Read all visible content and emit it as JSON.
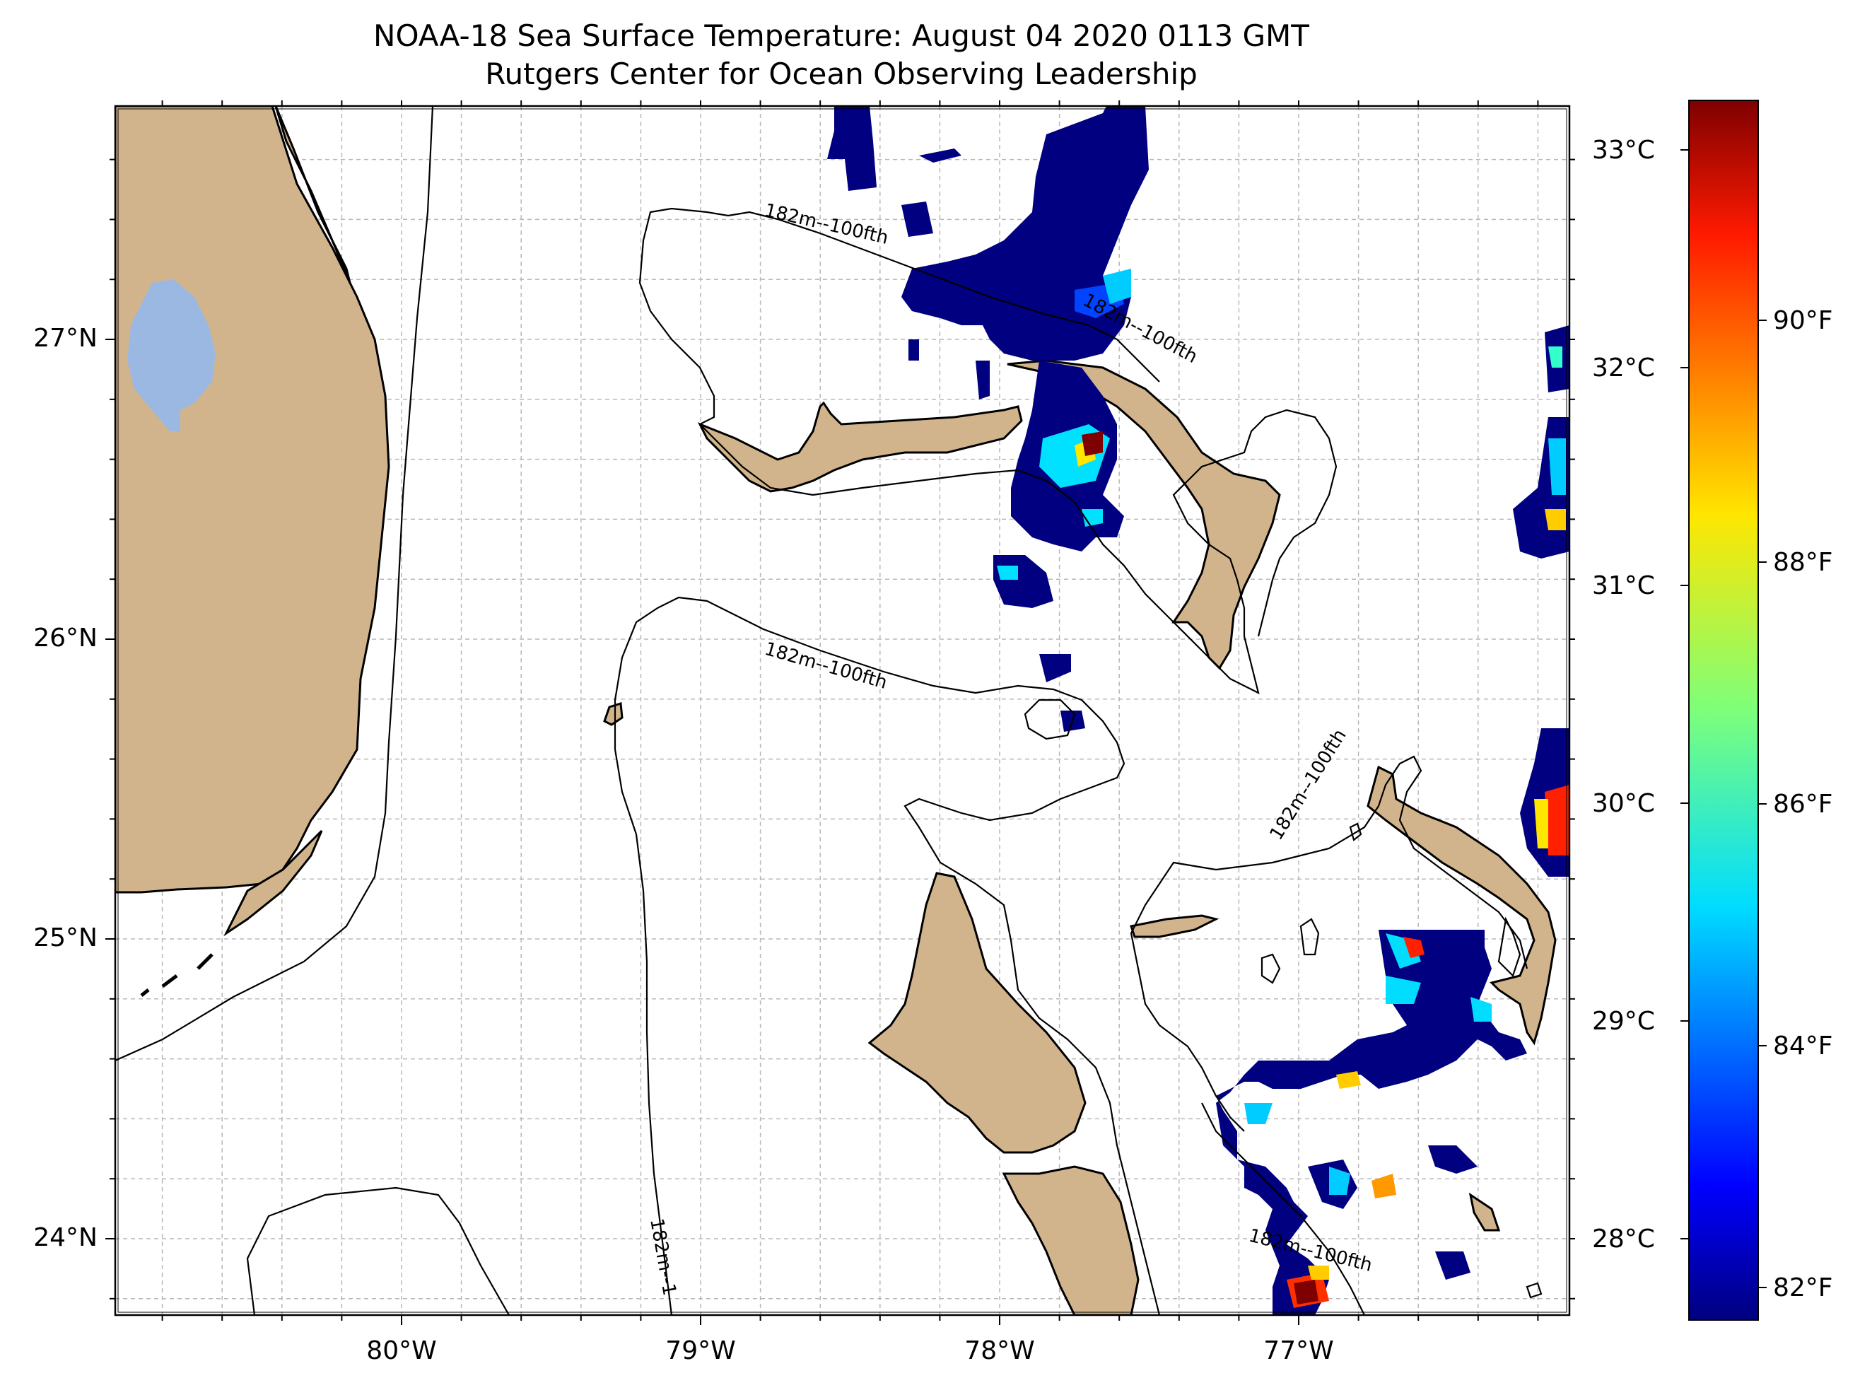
{
  "title": {
    "line1": "NOAA-18 Sea Surface Temperature: August 04 2020 0113 GMT",
    "line2": "Rutgers Center for Ocean Observing Leadership"
  },
  "axes": {
    "lat_ticks": [
      "27°N",
      "26°N",
      "25°N",
      "24°N"
    ],
    "lon_ticks": [
      "80°W",
      "79°W",
      "78°W",
      "77°W"
    ],
    "lat_range": [
      23.75,
      27.78
    ],
    "lon_range": [
      -80.95,
      -76.08
    ],
    "grid": true
  },
  "contour_labels": [
    "182m--100fth",
    "182m--100fth",
    "182m--100fth",
    "182m--100fth",
    "182m--100fth",
    "182m--1"
  ],
  "colorbar": {
    "celsius_ticks": [
      "33°C",
      "32°C",
      "31°C",
      "30°C",
      "29°C",
      "28°C"
    ],
    "fahrenheit_ticks": [
      "90°F",
      "88°F",
      "86°F",
      "84°F",
      "82°F"
    ],
    "range_c": [
      27.7,
      33.25
    ],
    "colormap": "jet"
  },
  "colors": {
    "land": "#d2b48c",
    "lake": "#9ab8e2",
    "ocean": "#ffffff",
    "grid": "#b0b0b0"
  }
}
